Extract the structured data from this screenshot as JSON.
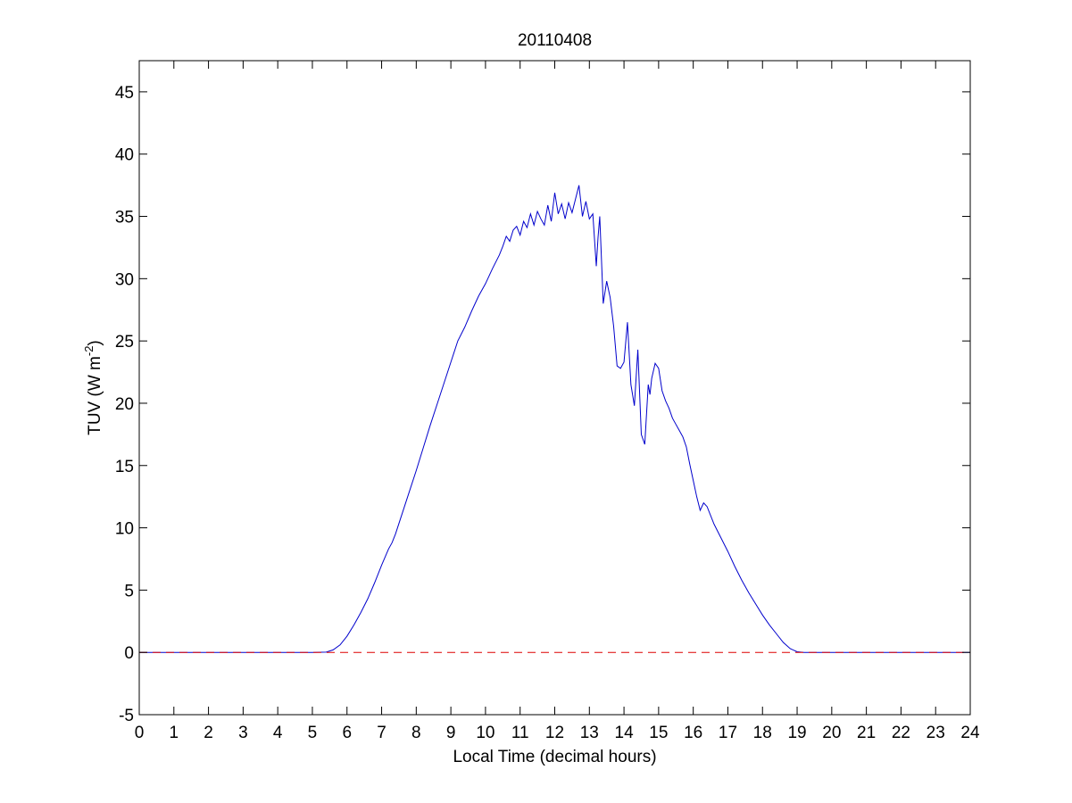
{
  "chart_data": {
    "type": "line",
    "title": "20110408",
    "xlabel": "Local Time (decimal hours)",
    "ylabel": {
      "text": "TUV (W m",
      "superscript": "-2",
      "close": ")"
    },
    "xlim": [
      0,
      24
    ],
    "ylim": [
      -5,
      47.5
    ],
    "xticks": [
      0,
      1,
      2,
      3,
      4,
      5,
      6,
      7,
      8,
      9,
      10,
      11,
      12,
      13,
      14,
      15,
      16,
      17,
      18,
      19,
      20,
      21,
      22,
      23,
      24
    ],
    "xtick_labels": [
      "0",
      "1",
      "2",
      "3",
      "4",
      "5",
      "6",
      "7",
      "8",
      "9",
      "10",
      "11",
      "12",
      "13",
      "14",
      "15",
      "16",
      "17",
      "18",
      "19",
      "20",
      "21",
      "22",
      "23",
      "24"
    ],
    "yticks": [
      -5,
      0,
      5,
      10,
      15,
      20,
      25,
      30,
      35,
      40,
      45
    ],
    "ytick_labels": [
      "-5",
      "0",
      "5",
      "10",
      "15",
      "20",
      "25",
      "30",
      "35",
      "40",
      "45"
    ],
    "grid": false,
    "colors": {
      "series": "#0000cc",
      "reference": "#dd0000",
      "axes": "#000000"
    },
    "series": [
      {
        "style": "solid",
        "x": [
          0,
          5.0,
          5.4,
          5.6,
          5.8,
          6.0,
          6.2,
          6.4,
          6.6,
          6.8,
          7.0,
          7.2,
          7.3,
          7.4,
          7.6,
          7.8,
          8.0,
          8.2,
          8.4,
          8.6,
          8.8,
          9.0,
          9.2,
          9.4,
          9.6,
          9.8,
          10.0,
          10.2,
          10.4,
          10.5,
          10.6,
          10.7,
          10.8,
          10.9,
          11.0,
          11.1,
          11.2,
          11.3,
          11.4,
          11.5,
          11.6,
          11.7,
          11.8,
          11.9,
          12.0,
          12.1,
          12.2,
          12.3,
          12.4,
          12.5,
          12.6,
          12.7,
          12.8,
          12.9,
          13.0,
          13.1,
          13.2,
          13.25,
          13.3,
          13.4,
          13.5,
          13.6,
          13.7,
          13.8,
          13.9,
          14.0,
          14.1,
          14.2,
          14.3,
          14.4,
          14.5,
          14.6,
          14.7,
          14.75,
          14.8,
          14.9,
          15.0,
          15.1,
          15.2,
          15.3,
          15.4,
          15.5,
          15.6,
          15.7,
          15.8,
          15.9,
          16.0,
          16.1,
          16.2,
          16.3,
          16.4,
          16.6,
          16.8,
          17.0,
          17.2,
          17.4,
          17.6,
          17.8,
          18.0,
          18.2,
          18.4,
          18.6,
          18.8,
          19.0,
          19.2,
          20.0,
          24.0
        ],
        "y": [
          0,
          0,
          0.02,
          0.2,
          0.6,
          1.3,
          2.2,
          3.2,
          4.3,
          5.6,
          7.0,
          8.3,
          8.8,
          9.5,
          11.2,
          12.9,
          14.6,
          16.4,
          18.2,
          19.9,
          21.6,
          23.3,
          25.0,
          26.1,
          27.4,
          28.6,
          29.6,
          30.8,
          31.9,
          32.6,
          33.4,
          33.0,
          33.9,
          34.2,
          33.5,
          34.6,
          34.1,
          35.2,
          34.3,
          35.4,
          34.8,
          34.3,
          35.9,
          34.6,
          36.9,
          35.2,
          36.0,
          34.8,
          36.1,
          35.3,
          36.4,
          37.5,
          35.0,
          36.2,
          34.8,
          35.2,
          31.0,
          33.3,
          35.0,
          28.0,
          29.8,
          28.5,
          26.2,
          23.0,
          22.8,
          23.3,
          26.5,
          21.5,
          19.8,
          24.3,
          17.5,
          16.7,
          21.5,
          20.7,
          22.0,
          23.2,
          22.8,
          21.0,
          20.2,
          19.6,
          18.8,
          18.3,
          17.8,
          17.3,
          16.5,
          15.1,
          13.8,
          12.5,
          11.4,
          12.0,
          11.7,
          10.3,
          9.2,
          8.1,
          6.9,
          5.8,
          4.8,
          3.9,
          3.0,
          2.2,
          1.5,
          0.8,
          0.3,
          0.05,
          0,
          0,
          0
        ]
      },
      {
        "style": "dashed",
        "x": [
          0,
          24
        ],
        "y": [
          0,
          0
        ]
      }
    ]
  }
}
